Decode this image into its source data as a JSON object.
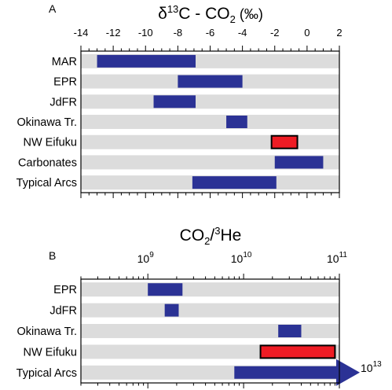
{
  "chart_data": [
    {
      "panel_label": "A",
      "type": "bar",
      "orientation": "horizontal-range",
      "title": "δ13C - CO2 (‰)",
      "title_parts": {
        "delta": "δ",
        "sup": "13",
        "mid": "C - CO",
        "sub": "2",
        "tail": " (‰)"
      },
      "xlabel": "",
      "ylabel": "",
      "xlim": [
        -14,
        2
      ],
      "x_ticks": [
        -14,
        -12,
        -10,
        -8,
        -6,
        -4,
        -2,
        0,
        2
      ],
      "x_tick_labels": [
        "-14",
        "-12",
        "-10",
        "-8",
        "-6",
        "-4",
        "-2",
        "0",
        "2"
      ],
      "x_minor_step": 0.5,
      "x_axis_position": "top",
      "grid": false,
      "background_bands": true,
      "categories": [
        "MAR",
        "EPR",
        "JdFR",
        "Okinawa Tr.",
        "NW Eifuku",
        "Carbonates",
        "Typical Arcs"
      ],
      "ranges": [
        {
          "category": "MAR",
          "min": -13.0,
          "max": -6.9,
          "highlight": false
        },
        {
          "category": "EPR",
          "min": -8.0,
          "max": -4.0,
          "highlight": false
        },
        {
          "category": "JdFR",
          "min": -9.5,
          "max": -6.9,
          "highlight": false
        },
        {
          "category": "Okinawa Tr.",
          "min": -5.0,
          "max": -3.7,
          "highlight": false
        },
        {
          "category": "NW Eifuku",
          "min": -2.2,
          "max": -0.6,
          "highlight": true
        },
        {
          "category": "Carbonates",
          "min": -2.0,
          "max": 1.0,
          "highlight": false
        },
        {
          "category": "Typical Arcs",
          "min": -7.1,
          "max": -1.9,
          "highlight": false
        }
      ]
    },
    {
      "panel_label": "B",
      "type": "bar",
      "orientation": "horizontal-range",
      "title": "CO2/3He",
      "title_parts": {
        "a": "CO",
        "sub": "2",
        "b": "/",
        "sup": "3",
        "c": "He"
      },
      "xlabel": "",
      "ylabel": "",
      "xscale": "log",
      "xlim": [
        200000000,
        100000000000
      ],
      "x_major_ticks": [
        {
          "value": 1000000000,
          "base": "10",
          "exp": "9"
        },
        {
          "value": 10000000000,
          "base": "10",
          "exp": "10"
        },
        {
          "value": 100000000000,
          "base": "10",
          "exp": "11"
        }
      ],
      "x_axis_position": "top",
      "grid": false,
      "background_bands": true,
      "categories": [
        "EPR",
        "JdFR",
        "Okinawa Tr.",
        "NW Eifuku",
        "Typical Arcs"
      ],
      "ranges": [
        {
          "category": "EPR",
          "min": 1000000000,
          "max": 2300000000,
          "highlight": false,
          "arrow": false
        },
        {
          "category": "JdFR",
          "min": 1500000000,
          "max": 2100000000,
          "highlight": false,
          "arrow": false
        },
        {
          "category": "Okinawa Tr.",
          "min": 23000000000,
          "max": 40000000000,
          "highlight": false,
          "arrow": false
        },
        {
          "category": "NW Eifuku",
          "min": 15000000000,
          "max": 90000000000,
          "highlight": true,
          "arrow": false
        },
        {
          "category": "Typical Arcs",
          "min": 8000000000,
          "max": 10000000000000,
          "highlight": false,
          "arrow": true
        }
      ],
      "arrow_label": {
        "base": "10",
        "exp": "13"
      }
    }
  ],
  "colors": {
    "bar": "#2b3295",
    "highlight": "#ee1c24",
    "band": "#dcdcdc",
    "axis": "#000000"
  }
}
